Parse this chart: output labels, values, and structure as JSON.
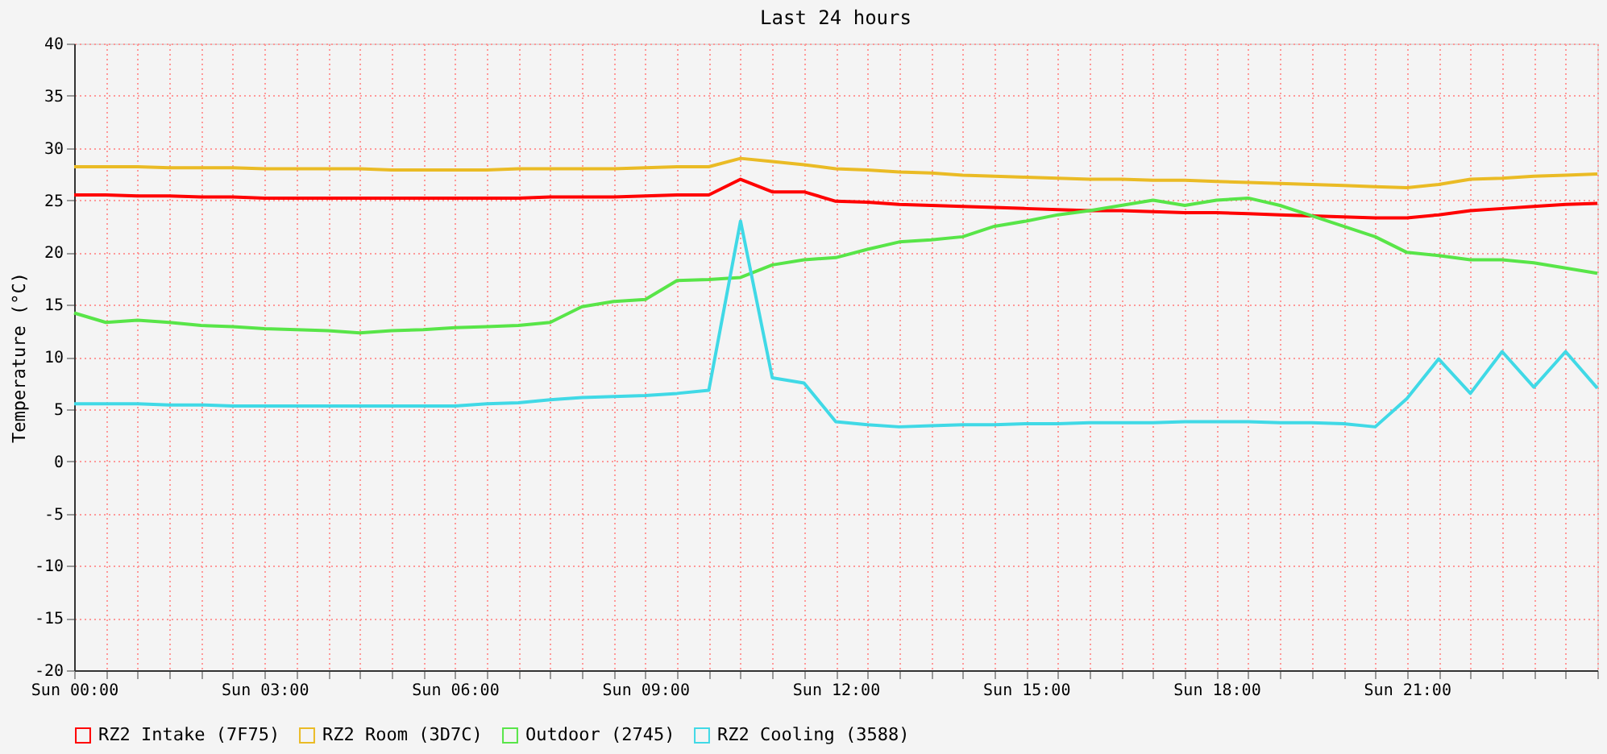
{
  "chart_data": {
    "type": "line",
    "title": "Last 24 hours",
    "ylabel": "Temperature (°C)",
    "categories": [
      "Sun 00:00",
      null,
      null,
      null,
      null,
      null,
      "Sun 03:00",
      null,
      null,
      null,
      null,
      null,
      "Sun 06:00",
      null,
      null,
      null,
      null,
      null,
      "Sun 09:00",
      null,
      null,
      null,
      null,
      null,
      "Sun 12:00",
      null,
      null,
      null,
      null,
      null,
      "Sun 15:00",
      null,
      null,
      null,
      null,
      null,
      "Sun 18:00",
      null,
      null,
      null,
      null,
      null,
      "Sun 21:00",
      null,
      null,
      null,
      null,
      null,
      null
    ],
    "ylim": [
      -20,
      40
    ],
    "yticks": [
      -20,
      -15,
      -10,
      -5,
      0,
      5,
      10,
      15,
      20,
      25,
      30,
      35,
      40
    ],
    "grid": true,
    "legend": "bottom",
    "marker": "none",
    "line_style": "solid",
    "series": [
      {
        "name": "RZ2 Intake (7F75)",
        "color": "#ff0000",
        "values": [
          25.5,
          25.5,
          25.4,
          25.4,
          25.3,
          25.3,
          25.2,
          25.2,
          25.2,
          25.2,
          25.2,
          25.2,
          25.2,
          25.2,
          25.2,
          25.3,
          25.3,
          25.3,
          25.4,
          25.5,
          25.5,
          27.0,
          25.8,
          25.8,
          24.9,
          24.8,
          24.6,
          24.5,
          24.4,
          24.3,
          24.2,
          24.1,
          24.0,
          24.0,
          23.9,
          23.8,
          23.8,
          23.7,
          23.6,
          23.5,
          23.4,
          23.3,
          23.3,
          23.6,
          24.0,
          24.2,
          24.4,
          24.6,
          24.7
        ]
      },
      {
        "name": "RZ2 Room (3D7C)",
        "color": "#eabb25",
        "values": [
          28.2,
          28.2,
          28.2,
          28.1,
          28.1,
          28.1,
          28.0,
          28.0,
          28.0,
          28.0,
          27.9,
          27.9,
          27.9,
          27.9,
          28.0,
          28.0,
          28.0,
          28.0,
          28.1,
          28.2,
          28.2,
          29.0,
          28.7,
          28.4,
          28.0,
          27.9,
          27.7,
          27.6,
          27.4,
          27.3,
          27.2,
          27.1,
          27.0,
          27.0,
          26.9,
          26.9,
          26.8,
          26.7,
          26.6,
          26.5,
          26.4,
          26.3,
          26.2,
          26.5,
          27.0,
          27.1,
          27.3,
          27.4,
          27.5
        ]
      },
      {
        "name": "Outdoor (2745)",
        "color": "#58e548",
        "values": [
          14.2,
          13.3,
          13.5,
          13.3,
          13.0,
          12.9,
          12.7,
          12.6,
          12.5,
          12.3,
          12.5,
          12.6,
          12.8,
          12.9,
          13.0,
          13.3,
          14.8,
          15.3,
          15.5,
          17.3,
          17.4,
          17.6,
          18.8,
          19.3,
          19.5,
          20.3,
          21.0,
          21.2,
          21.5,
          22.5,
          23.0,
          23.6,
          24.0,
          24.5,
          25.0,
          24.5,
          25.0,
          25.2,
          24.5,
          23.5,
          22.5,
          21.5,
          20.0,
          19.7,
          19.3,
          19.3,
          19.0,
          18.5,
          18.0
        ]
      },
      {
        "name": "RZ2 Cooling (3588)",
        "color": "#40d9e6",
        "values": [
          5.5,
          5.5,
          5.5,
          5.4,
          5.4,
          5.3,
          5.3,
          5.3,
          5.3,
          5.3,
          5.3,
          5.3,
          5.3,
          5.5,
          5.6,
          5.9,
          6.1,
          6.2,
          6.3,
          6.5,
          6.8,
          23.0,
          8.0,
          7.5,
          3.8,
          3.5,
          3.3,
          3.4,
          3.5,
          3.5,
          3.6,
          3.6,
          3.7,
          3.7,
          3.7,
          3.8,
          3.8,
          3.8,
          3.7,
          3.7,
          3.6,
          3.3,
          6.0,
          9.8,
          6.5,
          10.5,
          7.1,
          10.5,
          7.0
        ]
      }
    ]
  }
}
